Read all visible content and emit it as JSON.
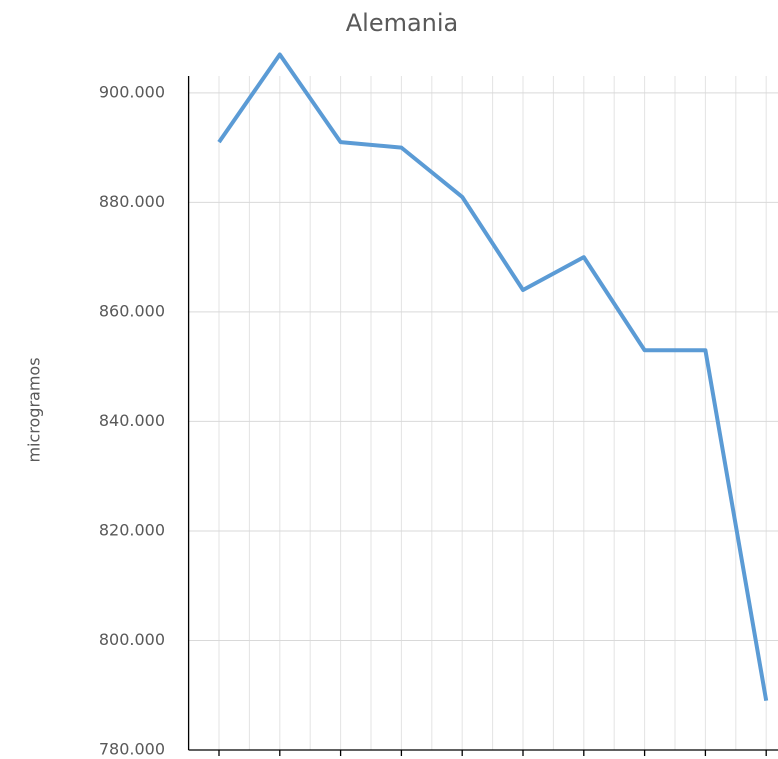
{
  "chart_data": {
    "type": "line",
    "title": "Alemania",
    "y_label": "microgramos",
    "categories": [
      null,
      null,
      null,
      null,
      null,
      null,
      null,
      null,
      null,
      null
    ],
    "series": [
      {
        "name": null,
        "color": "#5b9bd5",
        "values": [
          891000,
          907000,
          891000,
          890000,
          881000,
          864000,
          870000,
          853000,
          853000,
          789000
        ]
      }
    ],
    "ylim": [
      780000,
      906000
    ],
    "yticks": [
      {
        "value": 780000,
        "label": "780.000"
      },
      {
        "value": 800000,
        "label": "800.000"
      },
      {
        "value": 820000,
        "label": "820.000"
      },
      {
        "value": 840000,
        "label": "840.000"
      },
      {
        "value": 860000,
        "label": "860.000"
      },
      {
        "value": 880000,
        "label": "880.000"
      },
      {
        "value": 900000,
        "label": "900.000"
      }
    ],
    "grid": true
  }
}
